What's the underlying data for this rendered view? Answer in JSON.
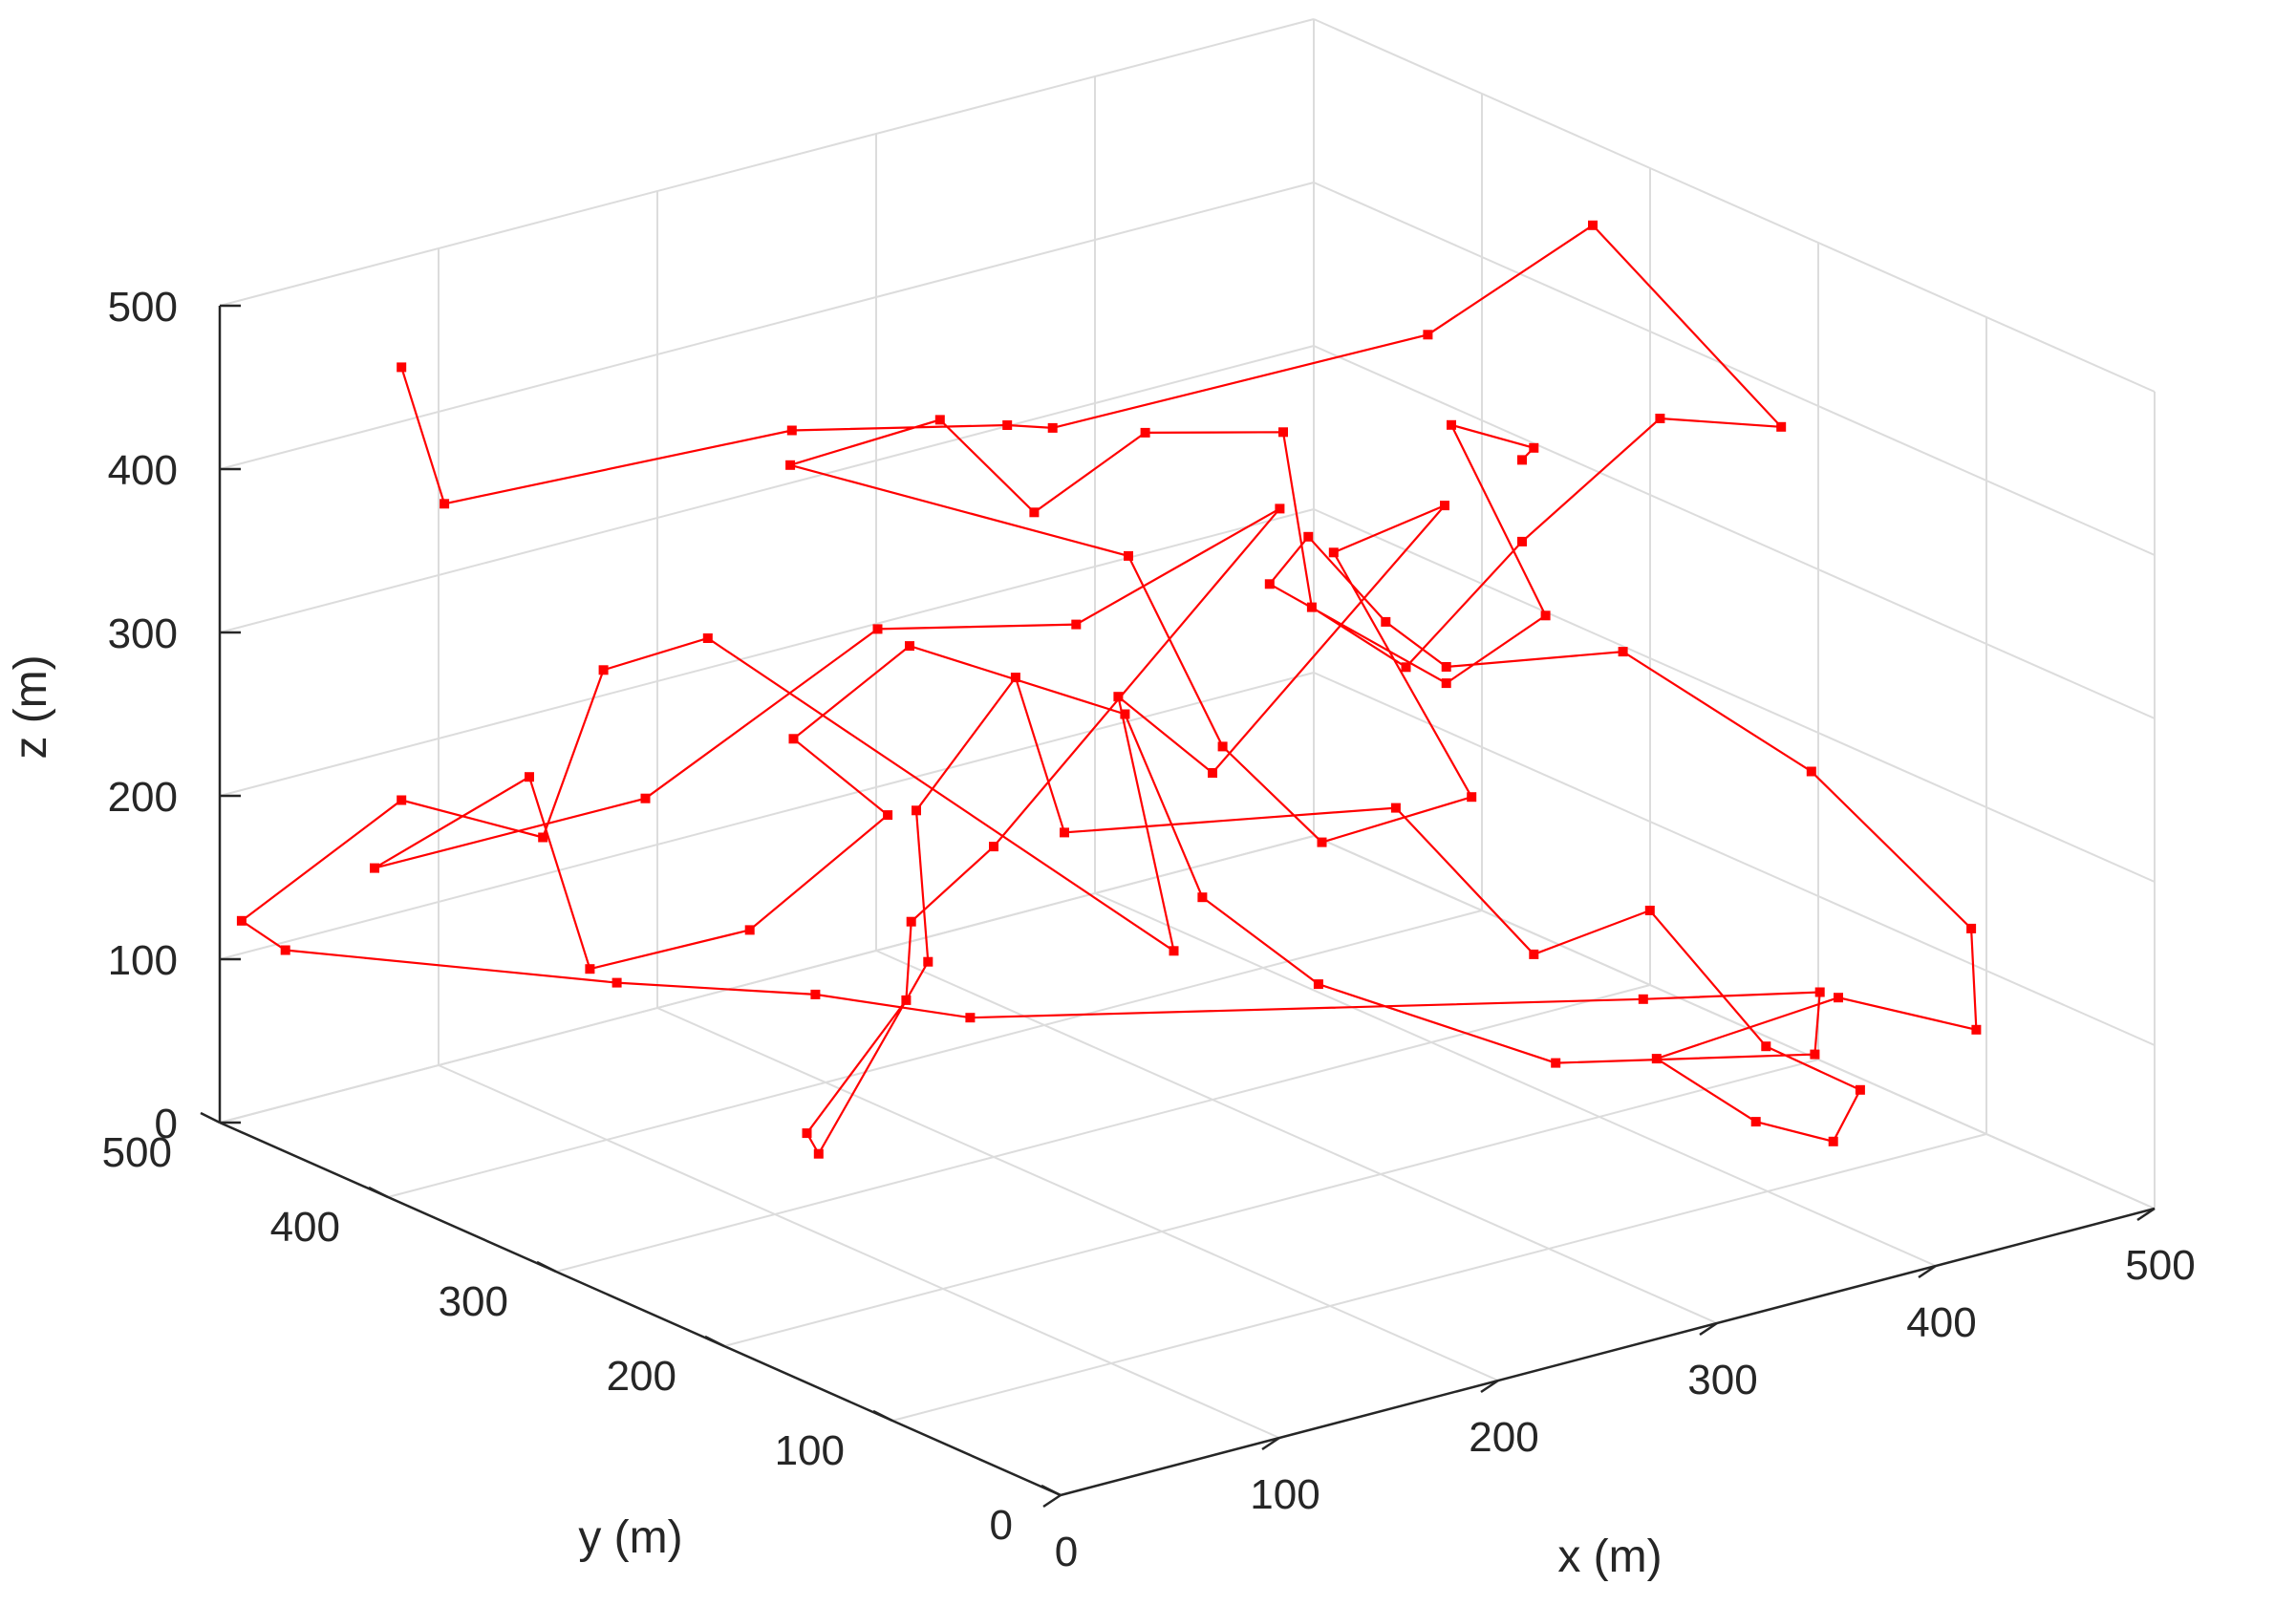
{
  "chart_data": {
    "type": "line3d",
    "title": "",
    "xlabel": "x (m)",
    "ylabel": "y (m)",
    "zlabel": "z (m)",
    "xlim": [
      0,
      500
    ],
    "ylim": [
      0,
      500
    ],
    "zlim": [
      0,
      500
    ],
    "xticks": [
      "0",
      "100",
      "200",
      "300",
      "400",
      "500"
    ],
    "yticks": [
      "0",
      "100",
      "200",
      "300",
      "400",
      "500"
    ],
    "zticks": [
      "0",
      "100",
      "200",
      "300",
      "400",
      "500"
    ],
    "grid": true,
    "box": "back-planes",
    "series": [
      {
        "color": "#ff0000",
        "marker": "square",
        "note": "single polyline path; approximate points read from the figure",
        "points": [
          [
            60,
            470,
            455
          ],
          [
            95,
            490,
            350
          ],
          [
            200,
            420,
            390
          ],
          [
            260,
            370,
            395
          ],
          [
            250,
            330,
            415
          ],
          [
            360,
            250,
            470
          ],
          [
            420,
            230,
            525
          ],
          [
            460,
            170,
            415
          ],
          [
            420,
            190,
            425
          ],
          [
            380,
            220,
            350
          ],
          [
            350,
            250,
            270
          ],
          [
            330,
            280,
            300
          ],
          [
            340,
            310,
            390
          ],
          [
            300,
            340,
            390
          ],
          [
            280,
            380,
            330
          ],
          [
            260,
            410,
            380
          ],
          [
            230,
            460,
            340
          ],
          [
            300,
            350,
            310
          ],
          [
            320,
            320,
            200
          ],
          [
            350,
            300,
            140
          ],
          [
            380,
            250,
            180
          ],
          [
            340,
            280,
            330
          ],
          [
            360,
            240,
            370
          ],
          [
            300,
            300,
            200
          ],
          [
            280,
            330,
            240
          ],
          [
            290,
            310,
            90
          ],
          [
            200,
            470,
            240
          ],
          [
            160,
            480,
            230
          ],
          [
            140,
            490,
            130
          ],
          [
            60,
            470,
            190
          ],
          [
            10,
            500,
            120
          ],
          [
            30,
            500,
            95
          ],
          [
            120,
            420,
            80
          ],
          [
            180,
            380,
            70
          ],
          [
            220,
            340,
            60
          ],
          [
            420,
            200,
            65
          ],
          [
            470,
            160,
            70
          ],
          [
            460,
            150,
            40
          ],
          [
            380,
            200,
            40
          ],
          [
            310,
            250,
            90
          ],
          [
            280,
            280,
            140
          ],
          [
            260,
            300,
            250
          ],
          [
            200,
            350,
            290
          ],
          [
            170,
            380,
            230
          ],
          [
            190,
            350,
            190
          ],
          [
            150,
            380,
            120
          ],
          [
            100,
            410,
            100
          ],
          [
            80,
            420,
            220
          ],
          [
            40,
            460,
            160
          ],
          [
            110,
            390,
            210
          ],
          [
            170,
            330,
            320
          ],
          [
            230,
            290,
            320
          ],
          [
            300,
            260,
            380
          ],
          [
            200,
            300,
            190
          ],
          [
            170,
            310,
            150
          ],
          [
            160,
            300,
            110
          ],
          [
            130,
            320,
            30
          ],
          [
            120,
            300,
            30
          ],
          [
            170,
            300,
            130
          ],
          [
            180,
            320,
            210
          ],
          [
            210,
            300,
            290
          ],
          [
            240,
            310,
            180
          ],
          [
            330,
            230,
            200
          ],
          [
            370,
            200,
            110
          ],
          [
            400,
            170,
            140
          ],
          [
            430,
            140,
            60
          ],
          [
            450,
            110,
            40
          ],
          [
            430,
            100,
            20
          ],
          [
            410,
            120,
            30
          ],
          [
            380,
            140,
            70
          ],
          [
            440,
            110,
            100
          ],
          [
            480,
            80,
            80
          ],
          [
            470,
            70,
            150
          ],
          [
            420,
            100,
            250
          ],
          [
            380,
            160,
            310
          ],
          [
            330,
            200,
            300
          ],
          [
            310,
            210,
            330
          ],
          [
            290,
            230,
            380
          ],
          [
            280,
            240,
            350
          ],
          [
            330,
            200,
            290
          ],
          [
            360,
            180,
            330
          ],
          [
            340,
            210,
            440
          ],
          [
            370,
            200,
            420
          ],
          [
            380,
            220,
            400
          ]
        ]
      }
    ]
  }
}
